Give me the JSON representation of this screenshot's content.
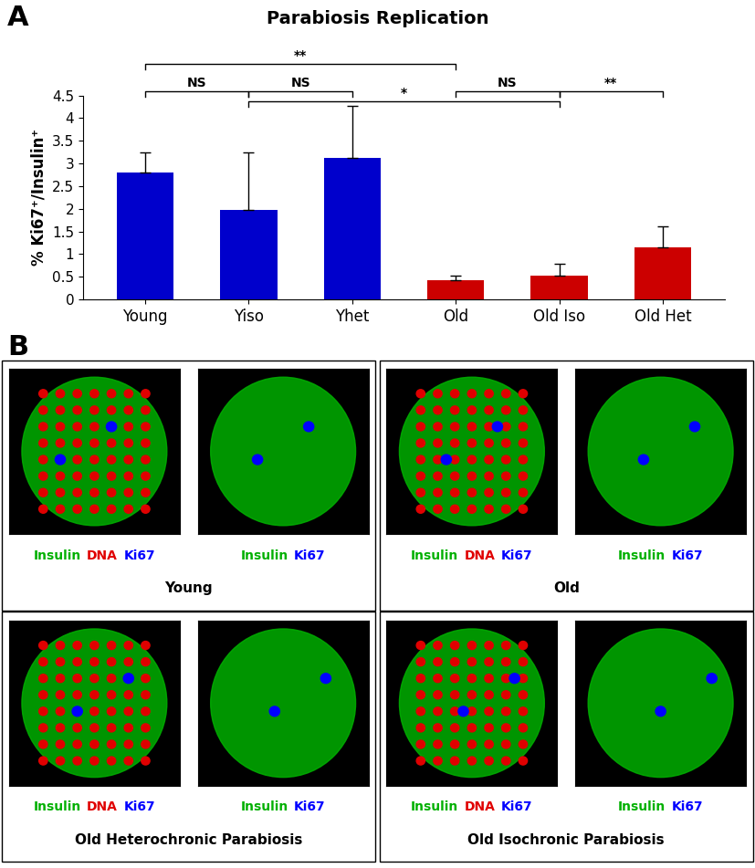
{
  "panel_labels": [
    "A",
    "B"
  ],
  "chart_data": {
    "type": "bar",
    "title": "Parabiosis Replication",
    "y_label": "% Ki67⁺/Insulin⁺",
    "categories": [
      "Young",
      "Yiso",
      "Yhet",
      "Old",
      "Old Iso",
      "Old Het"
    ],
    "values": [
      2.8,
      1.97,
      3.12,
      0.43,
      0.52,
      1.15
    ],
    "errors": [
      0.45,
      1.27,
      1.15,
      0.1,
      0.27,
      0.47
    ],
    "colors": [
      "#0000cc",
      "#0000cc",
      "#0000cc",
      "#cc0000",
      "#cc0000",
      "#cc0000"
    ],
    "ylim": [
      0,
      4.5
    ],
    "yticks": [
      0,
      0.5,
      1,
      1.5,
      2,
      2.5,
      3,
      3.5,
      4,
      4.5
    ],
    "grid": false,
    "significance": [
      {
        "groups": [
          "Young",
          "Old"
        ],
        "label": "**",
        "y": 5.2
      },
      {
        "groups": [
          "Young",
          "Yiso"
        ],
        "label": "NS",
        "y": 4.6
      },
      {
        "groups": [
          "Yiso",
          "Yhet"
        ],
        "label": "NS",
        "y": 4.6
      },
      {
        "groups": [
          "Yiso",
          "Old Iso"
        ],
        "label": "*",
        "y": 4.38
      },
      {
        "groups": [
          "Old",
          "Old Iso"
        ],
        "label": "NS",
        "y": 4.6
      },
      {
        "groups": [
          "Old Iso",
          "Old Het"
        ],
        "label": "**",
        "y": 4.6
      }
    ]
  },
  "panel_b": {
    "stain_colors": {
      "Insulin": "#00b000",
      "DNA": "#e00000",
      "Ki67": "#0000ff"
    },
    "groups": [
      {
        "title": "Young",
        "images": [
          [
            "Insulin",
            "DNA",
            "Ki67"
          ],
          [
            "Insulin",
            "Ki67"
          ]
        ]
      },
      {
        "title": "Old",
        "images": [
          [
            "Insulin",
            "DNA",
            "Ki67"
          ],
          [
            "Insulin",
            "Ki67"
          ]
        ]
      },
      {
        "title": "Old Heterochronic Parabiosis",
        "images": [
          [
            "Insulin",
            "DNA",
            "Ki67"
          ],
          [
            "Insulin",
            "Ki67"
          ]
        ]
      },
      {
        "title": "Old Isochronic Parabiosis",
        "images": [
          [
            "Insulin",
            "DNA",
            "Ki67"
          ],
          [
            "Insulin",
            "Ki67"
          ]
        ]
      }
    ]
  }
}
